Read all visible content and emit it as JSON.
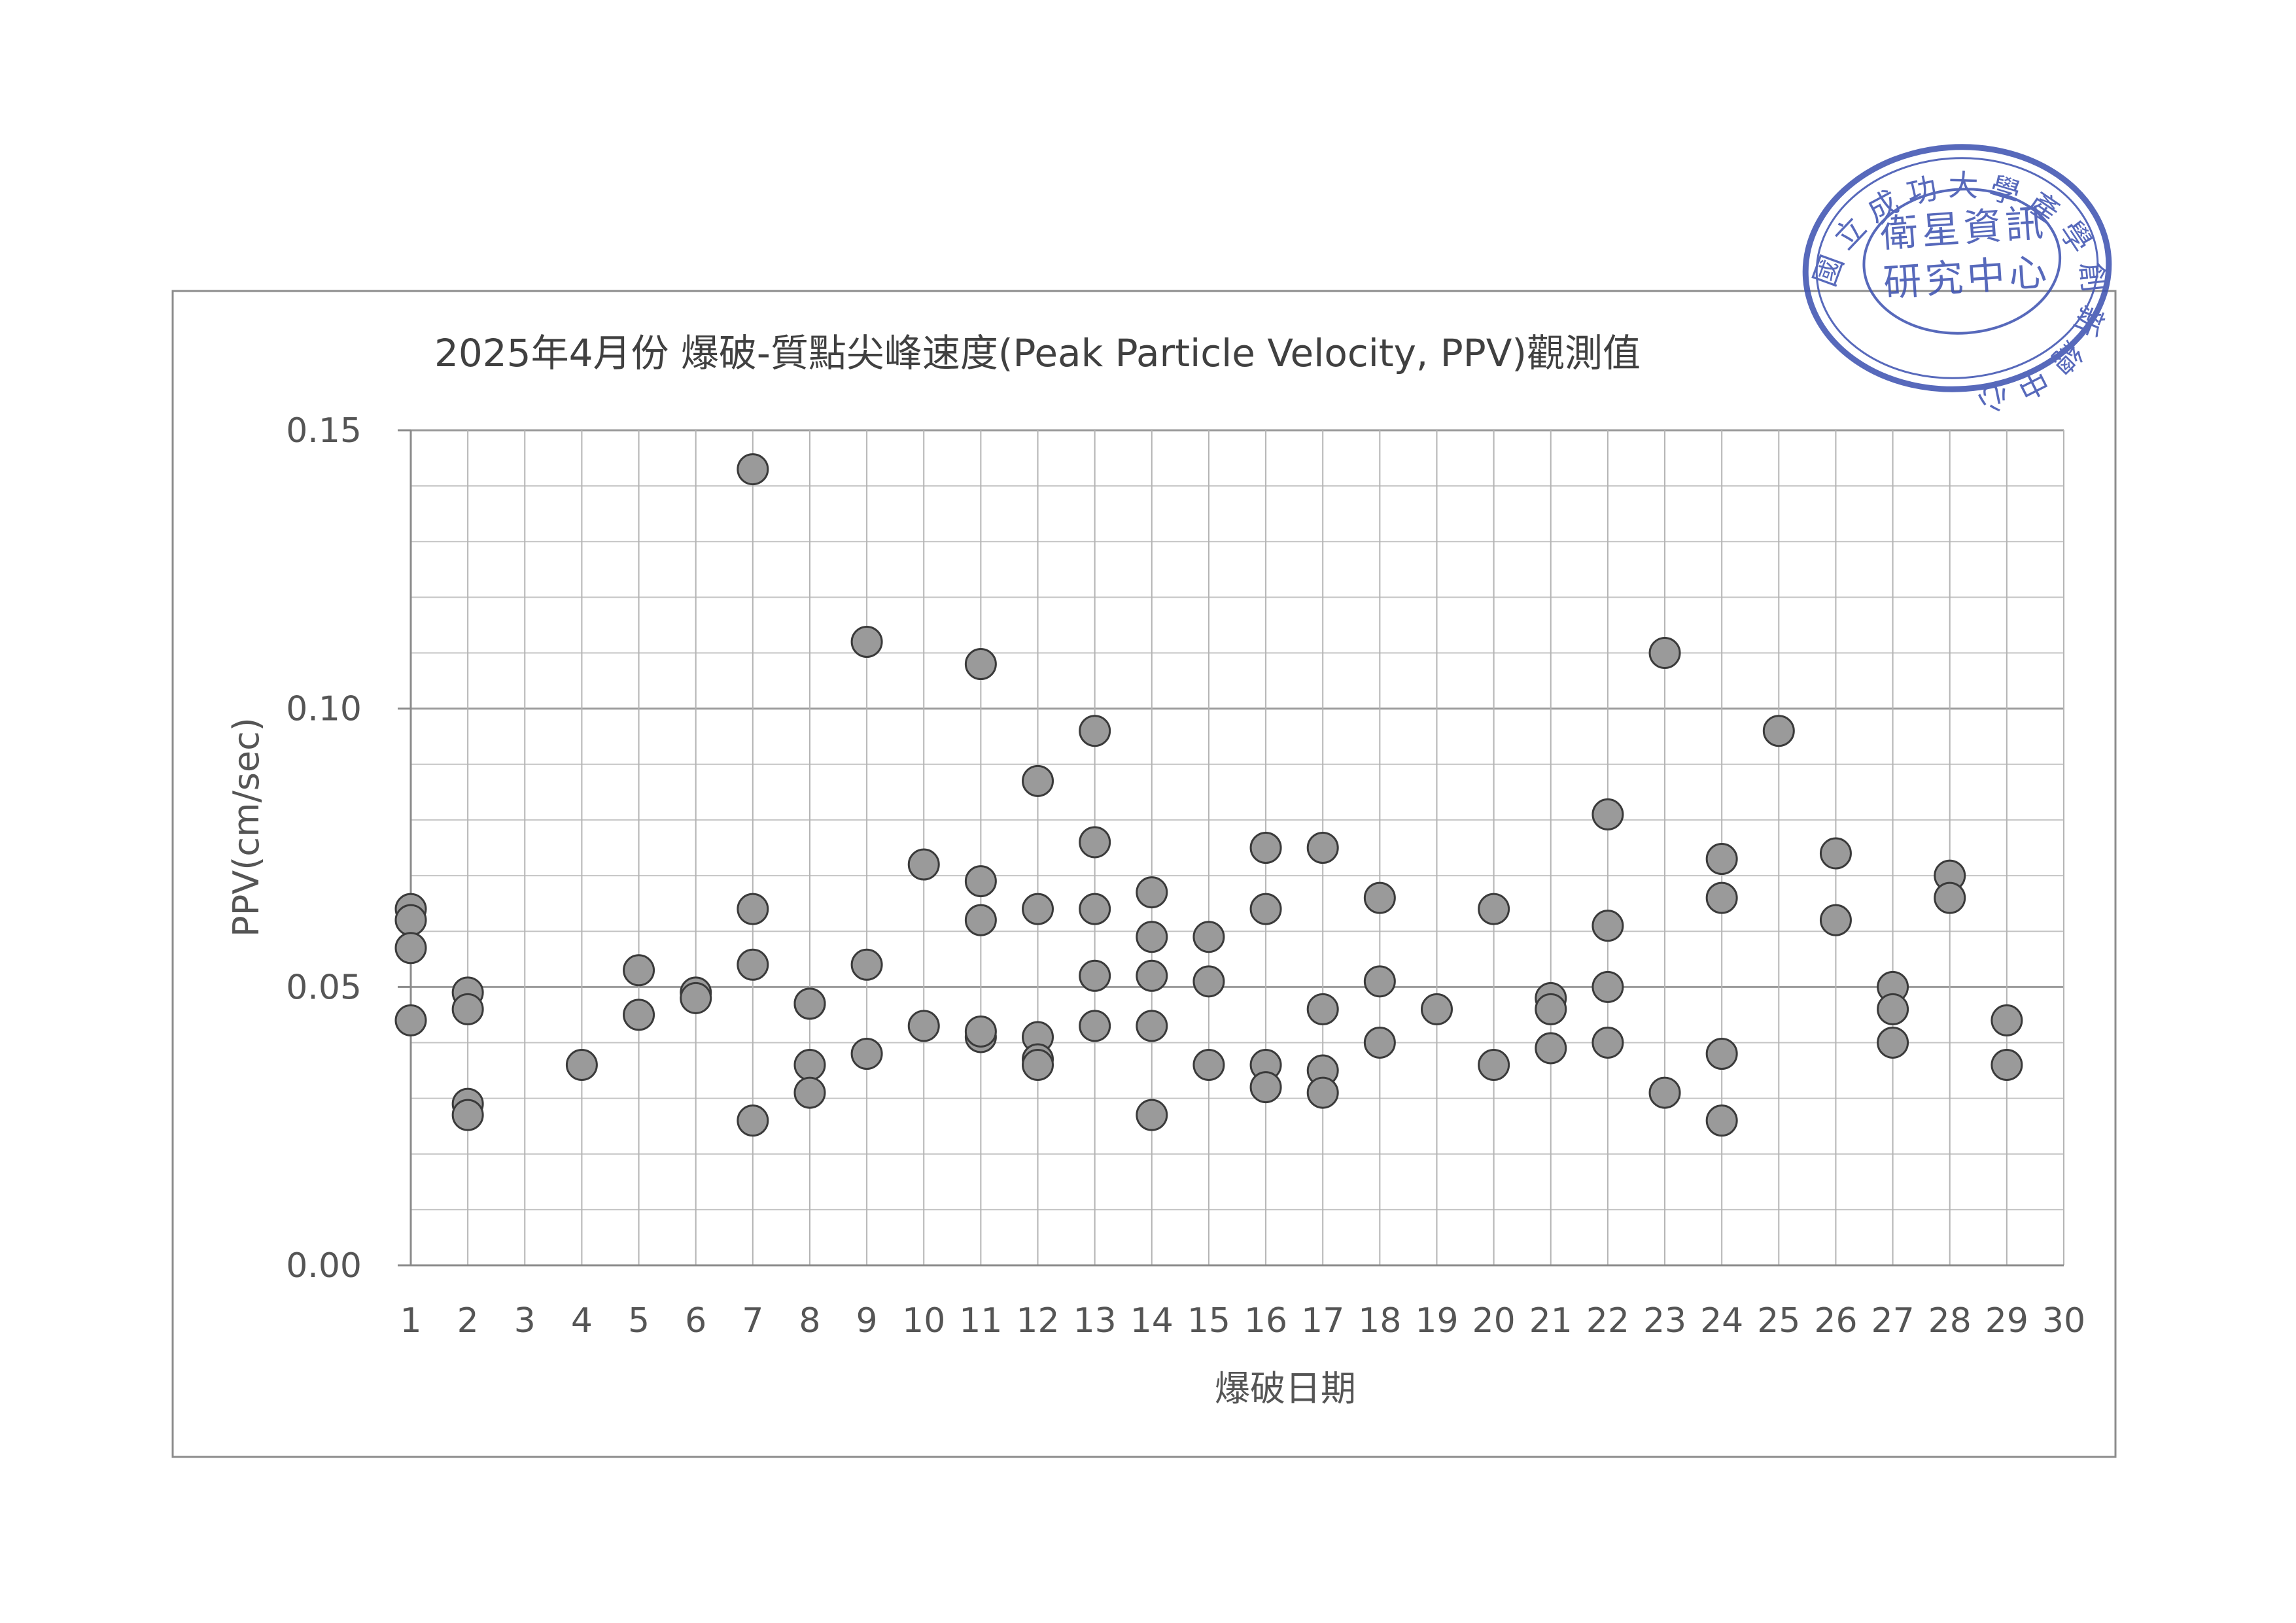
{
  "chart_data": {
    "type": "scatter",
    "title": "2025年4月份 爆破-質點尖峰速度(Peak Particle Velocity, PPV)觀測值",
    "xlabel": "爆破日期",
    "ylabel": "PPV(cm/sec)",
    "xlim": [
      1,
      30
    ],
    "ylim": [
      0,
      0.15
    ],
    "x_ticks": [
      "1",
      "2",
      "3",
      "4",
      "5",
      "6",
      "7",
      "8",
      "9",
      "10",
      "11",
      "12",
      "13",
      "14",
      "15",
      "16",
      "17",
      "18",
      "19",
      "20",
      "21",
      "22",
      "23",
      "24",
      "25",
      "26",
      "27",
      "28",
      "29",
      "30"
    ],
    "y_ticks": [
      "0.00",
      "0.05",
      "0.10",
      "0.15"
    ],
    "minor_gridlines_y": 0.01,
    "grid": true,
    "marker_color": "#9a9a9a",
    "marker_edge_color": "#3a3a3a",
    "points": [
      {
        "x": 1,
        "y": 0.064
      },
      {
        "x": 1,
        "y": 0.062
      },
      {
        "x": 1,
        "y": 0.057
      },
      {
        "x": 1,
        "y": 0.044
      },
      {
        "x": 2,
        "y": 0.049
      },
      {
        "x": 2,
        "y": 0.046
      },
      {
        "x": 2,
        "y": 0.029
      },
      {
        "x": 2,
        "y": 0.027
      },
      {
        "x": 4,
        "y": 0.036
      },
      {
        "x": 5,
        "y": 0.053
      },
      {
        "x": 5,
        "y": 0.045
      },
      {
        "x": 6,
        "y": 0.049
      },
      {
        "x": 6,
        "y": 0.048
      },
      {
        "x": 7,
        "y": 0.143
      },
      {
        "x": 7,
        "y": 0.064
      },
      {
        "x": 7,
        "y": 0.054
      },
      {
        "x": 7,
        "y": 0.026
      },
      {
        "x": 8,
        "y": 0.047
      },
      {
        "x": 8,
        "y": 0.047
      },
      {
        "x": 8,
        "y": 0.036
      },
      {
        "x": 8,
        "y": 0.031
      },
      {
        "x": 9,
        "y": 0.112
      },
      {
        "x": 9,
        "y": 0.054
      },
      {
        "x": 9,
        "y": 0.038
      },
      {
        "x": 10,
        "y": 0.072
      },
      {
        "x": 10,
        "y": 0.043
      },
      {
        "x": 11,
        "y": 0.108
      },
      {
        "x": 11,
        "y": 0.069
      },
      {
        "x": 11,
        "y": 0.062
      },
      {
        "x": 11,
        "y": 0.041
      },
      {
        "x": 11,
        "y": 0.042
      },
      {
        "x": 12,
        "y": 0.087
      },
      {
        "x": 12,
        "y": 0.064
      },
      {
        "x": 12,
        "y": 0.041
      },
      {
        "x": 12,
        "y": 0.037
      },
      {
        "x": 12,
        "y": 0.036
      },
      {
        "x": 13,
        "y": 0.096
      },
      {
        "x": 13,
        "y": 0.076
      },
      {
        "x": 13,
        "y": 0.064
      },
      {
        "x": 13,
        "y": 0.052
      },
      {
        "x": 13,
        "y": 0.043
      },
      {
        "x": 14,
        "y": 0.067
      },
      {
        "x": 14,
        "y": 0.059
      },
      {
        "x": 14,
        "y": 0.052
      },
      {
        "x": 14,
        "y": 0.043
      },
      {
        "x": 14,
        "y": 0.027
      },
      {
        "x": 15,
        "y": 0.059
      },
      {
        "x": 15,
        "y": 0.051
      },
      {
        "x": 15,
        "y": 0.036
      },
      {
        "x": 16,
        "y": 0.075
      },
      {
        "x": 16,
        "y": 0.064
      },
      {
        "x": 16,
        "y": 0.036
      },
      {
        "x": 16,
        "y": 0.032
      },
      {
        "x": 17,
        "y": 0.075
      },
      {
        "x": 17,
        "y": 0.046
      },
      {
        "x": 17,
        "y": 0.035
      },
      {
        "x": 17,
        "y": 0.031
      },
      {
        "x": 18,
        "y": 0.066
      },
      {
        "x": 18,
        "y": 0.051
      },
      {
        "x": 18,
        "y": 0.04
      },
      {
        "x": 19,
        "y": 0.046
      },
      {
        "x": 20,
        "y": 0.064
      },
      {
        "x": 20,
        "y": 0.036
      },
      {
        "x": 21,
        "y": 0.048
      },
      {
        "x": 21,
        "y": 0.046
      },
      {
        "x": 21,
        "y": 0.039
      },
      {
        "x": 22,
        "y": 0.081
      },
      {
        "x": 22,
        "y": 0.061
      },
      {
        "x": 22,
        "y": 0.05
      },
      {
        "x": 22,
        "y": 0.04
      },
      {
        "x": 23,
        "y": 0.11
      },
      {
        "x": 23,
        "y": 0.031
      },
      {
        "x": 24,
        "y": 0.073
      },
      {
        "x": 24,
        "y": 0.066
      },
      {
        "x": 24,
        "y": 0.038
      },
      {
        "x": 24,
        "y": 0.026
      },
      {
        "x": 25,
        "y": 0.096
      },
      {
        "x": 26,
        "y": 0.074
      },
      {
        "x": 26,
        "y": 0.062
      },
      {
        "x": 27,
        "y": 0.05
      },
      {
        "x": 27,
        "y": 0.046
      },
      {
        "x": 27,
        "y": 0.04
      },
      {
        "x": 28,
        "y": 0.07
      },
      {
        "x": 28,
        "y": 0.066
      },
      {
        "x": 29,
        "y": 0.044
      },
      {
        "x": 29,
        "y": 0.036
      }
    ]
  },
  "stamp": {
    "ring_text": "國立成功大學產學創新總中心",
    "center_line_1": "衛星資訊",
    "center_line_2": "研究中心",
    "color": "#3a4fb0"
  }
}
